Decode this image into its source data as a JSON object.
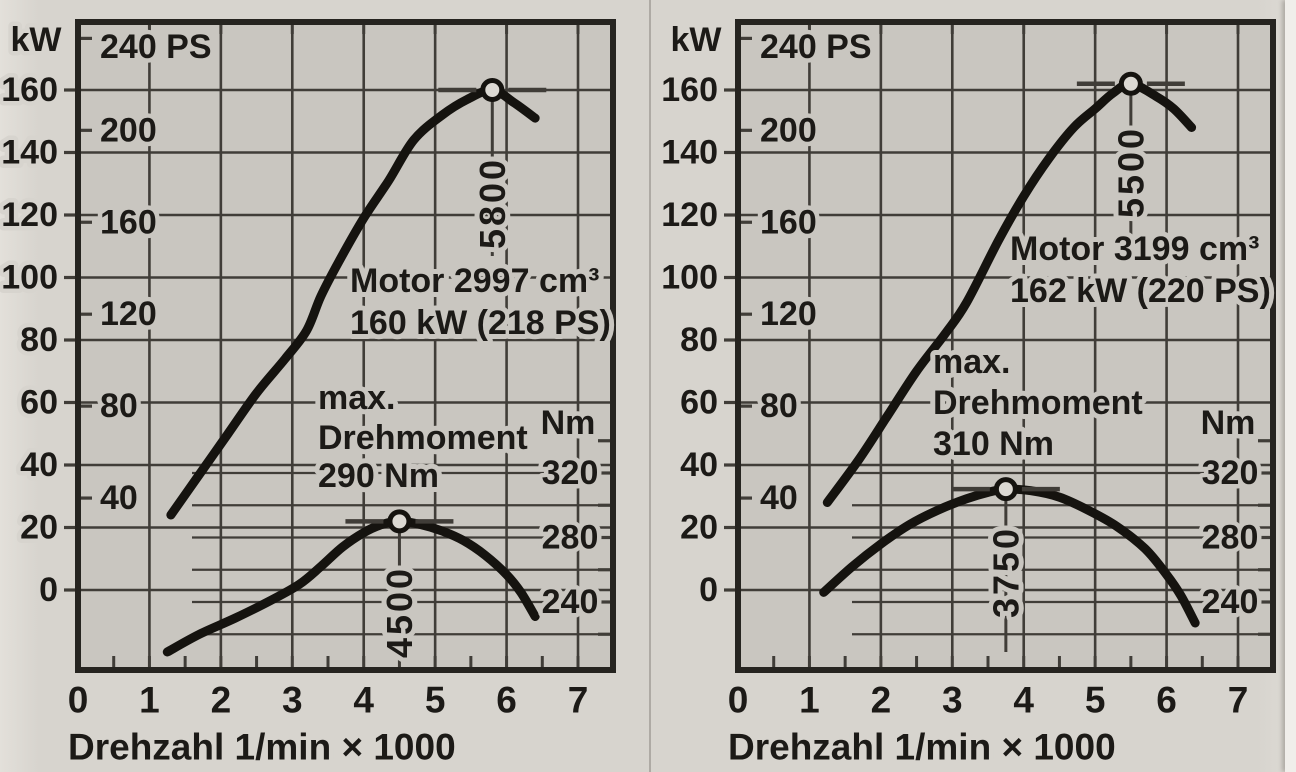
{
  "colors": {
    "paper": "#d7d4ce",
    "plot_bg": "#c9c6c0",
    "ink": "#1c1a17",
    "grid": "#403d38",
    "curve": "#15130f",
    "marker_fill": "#dcd9d3",
    "divider": "#aeaaa4",
    "page_edge": "#f0eeea"
  },
  "chart_data": [
    {
      "type": "line",
      "panel": "left",
      "engine_annotation": [
        "Motor 2997 cm³",
        "160 kW (218 PS)"
      ],
      "torque_annotation": [
        "max.",
        "Drehmoment",
        "290 Nm"
      ],
      "x_axis": {
        "title": "Drehzahl 1/min × 1000",
        "ticks": [
          "0",
          "1",
          "2",
          "3",
          "4",
          "5",
          "6",
          "7"
        ],
        "min": 0,
        "max": 7.5,
        "minor_step": 0.5
      },
      "y_axis_kw": {
        "label": "kW",
        "ticks": [
          "160",
          "140",
          "120",
          "100",
          "80",
          "60",
          "40",
          "20",
          "0"
        ],
        "min": -26,
        "max": 182,
        "grid_step": 20
      },
      "y_axis_ps": {
        "unit": "PS",
        "ticks": [
          {
            "value": 240,
            "label": "240 PS"
          },
          {
            "value": 200,
            "label": "200"
          },
          {
            "value": 160,
            "label": "160"
          },
          {
            "value": 120,
            "label": "120"
          },
          {
            "value": 80,
            "label": "80"
          },
          {
            "value": 40,
            "label": "40"
          }
        ]
      },
      "y_axis_nm": {
        "label": "Nm",
        "ticks": [
          "320",
          "280",
          "240"
        ],
        "grid_values": [
          320,
          300,
          280,
          260,
          240,
          220
        ]
      },
      "power_series": {
        "unit": "kW",
        "peak": {
          "rpm": 5800,
          "rpm_label": "5800",
          "kw": 160
        },
        "points_rpm1000_kw": [
          [
            1.3,
            24
          ],
          [
            1.7,
            37
          ],
          [
            2.1,
            50
          ],
          [
            2.5,
            63
          ],
          [
            2.9,
            74
          ],
          [
            3.2,
            83
          ],
          [
            3.4,
            94
          ],
          [
            3.65,
            105
          ],
          [
            4.0,
            119
          ],
          [
            4.35,
            131
          ],
          [
            4.7,
            144
          ],
          [
            5.1,
            152
          ],
          [
            5.45,
            157
          ],
          [
            5.8,
            160
          ],
          [
            6.1,
            156
          ],
          [
            6.4,
            151
          ]
        ]
      },
      "torque_series": {
        "unit": "Nm",
        "peak": {
          "rpm": 4500,
          "rpm_label": "4500",
          "nm": 290
        },
        "points_rpm1000_nm": [
          [
            1.25,
            209
          ],
          [
            1.7,
            220
          ],
          [
            2.2,
            230
          ],
          [
            2.7,
            241
          ],
          [
            3.1,
            251
          ],
          [
            3.4,
            262
          ],
          [
            3.7,
            274
          ],
          [
            4.0,
            283
          ],
          [
            4.25,
            288
          ],
          [
            4.5,
            290
          ],
          [
            4.8,
            288
          ],
          [
            5.1,
            284
          ],
          [
            5.4,
            278
          ],
          [
            5.7,
            269
          ],
          [
            6.0,
            257
          ],
          [
            6.2,
            246
          ],
          [
            6.4,
            231
          ]
        ]
      }
    },
    {
      "type": "line",
      "panel": "right",
      "engine_annotation": [
        "Motor 3199 cm³",
        "162 kW (220 PS)"
      ],
      "torque_annotation": [
        "max.",
        "Drehmoment",
        "310 Nm"
      ],
      "x_axis": {
        "title": "Drehzahl 1/min × 1000",
        "ticks": [
          "0",
          "1",
          "2",
          "3",
          "4",
          "5",
          "6",
          "7"
        ],
        "min": 0,
        "max": 7.5,
        "minor_step": 0.5
      },
      "y_axis_kw": {
        "label": "kW",
        "ticks": [
          "160",
          "140",
          "120",
          "100",
          "80",
          "60",
          "40",
          "20",
          "0"
        ],
        "min": -26,
        "max": 182,
        "grid_step": 20
      },
      "y_axis_ps": {
        "unit": "PS",
        "ticks": [
          {
            "value": 240,
            "label": "240 PS"
          },
          {
            "value": 200,
            "label": "200"
          },
          {
            "value": 160,
            "label": "160"
          },
          {
            "value": 120,
            "label": "120"
          },
          {
            "value": 80,
            "label": "80"
          },
          {
            "value": 40,
            "label": "40"
          }
        ]
      },
      "y_axis_nm": {
        "label": "Nm",
        "ticks": [
          "320",
          "280",
          "240"
        ],
        "grid_values": [
          320,
          300,
          280,
          260,
          240,
          220
        ]
      },
      "power_series": {
        "unit": "kW",
        "peak": {
          "rpm": 5500,
          "rpm_label": "5500",
          "kw": 162
        },
        "points_rpm1000_kw": [
          [
            1.25,
            28
          ],
          [
            1.7,
            42
          ],
          [
            2.1,
            56
          ],
          [
            2.5,
            70
          ],
          [
            2.9,
            82
          ],
          [
            3.2,
            92
          ],
          [
            3.65,
            112
          ],
          [
            4.0,
            126
          ],
          [
            4.35,
            138
          ],
          [
            4.7,
            148
          ],
          [
            5.0,
            154
          ],
          [
            5.25,
            159
          ],
          [
            5.5,
            162
          ],
          [
            5.85,
            158
          ],
          [
            6.1,
            154
          ],
          [
            6.35,
            148
          ]
        ]
      },
      "torque_series": {
        "unit": "Nm",
        "peak": {
          "rpm": 3750,
          "rpm_label": "3750",
          "nm": 310
        },
        "points_rpm1000_nm": [
          [
            1.2,
            246
          ],
          [
            1.6,
            262
          ],
          [
            2.0,
            276
          ],
          [
            2.4,
            288
          ],
          [
            2.8,
            297
          ],
          [
            3.2,
            304
          ],
          [
            3.5,
            308
          ],
          [
            3.75,
            310
          ],
          [
            4.1,
            309
          ],
          [
            4.5,
            305
          ],
          [
            4.9,
            297
          ],
          [
            5.3,
            287
          ],
          [
            5.7,
            273
          ],
          [
            6.0,
            257
          ],
          [
            6.2,
            244
          ],
          [
            6.4,
            227
          ]
        ]
      }
    }
  ]
}
